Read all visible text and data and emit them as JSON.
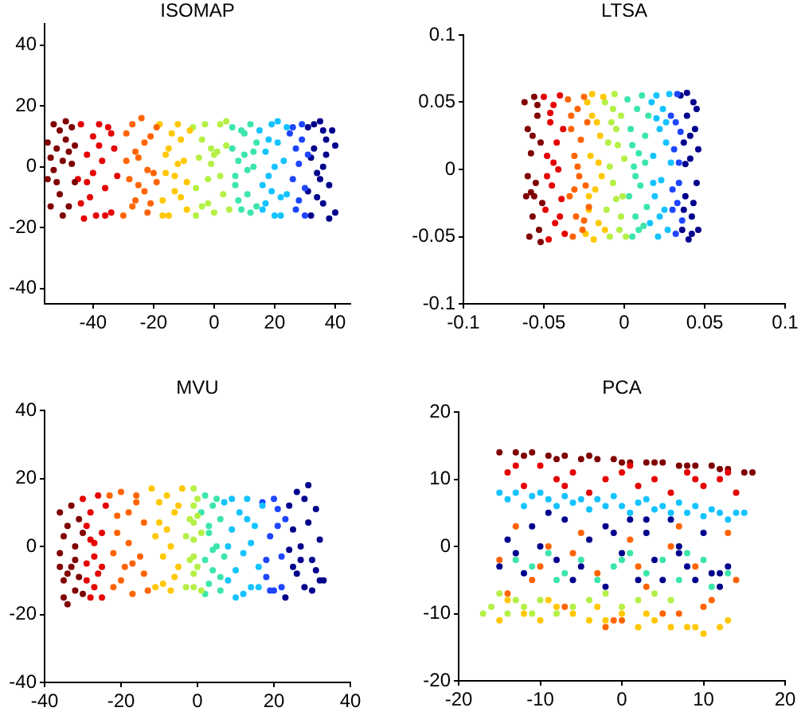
{
  "chart_data": [
    {
      "type": "scatter",
      "title": "ISOMAP",
      "marker": "circle",
      "xlim": [
        -56,
        45
      ],
      "ylim": [
        -45,
        47
      ],
      "xticks": [
        -40,
        -20,
        0,
        20,
        40
      ],
      "yticks": [
        -40,
        -20,
        0,
        20,
        40
      ],
      "series": [
        {
          "color": "#800000",
          "x": [
            -55,
            -54,
            -54,
            -53,
            -52,
            -52,
            -51,
            -50,
            -50,
            -49,
            -48,
            -48,
            -47,
            -46,
            -46,
            -53,
            -51,
            -49,
            -47,
            -55
          ],
          "values": [
            8,
            -13,
            3,
            14,
            -5,
            6,
            12,
            -16,
            2,
            9,
            -13,
            5,
            13,
            -5,
            7,
            -1,
            -9,
            15,
            1,
            -4
          ]
        },
        {
          "color": "#e60000",
          "x": [
            -45,
            -44,
            -43,
            -42,
            -41,
            -40,
            -39,
            -38,
            -37,
            -36,
            -35,
            -34,
            -33,
            -32,
            -44,
            -42,
            -40,
            -38,
            -36,
            -34
          ],
          "values": [
            -4,
            14,
            -17,
            4,
            -10,
            10,
            -16,
            14,
            2,
            -7,
            13,
            -15,
            6,
            -3,
            -12,
            -5,
            -2,
            7,
            -16,
            11
          ]
        },
        {
          "color": "#ff6400",
          "x": [
            -30,
            -29,
            -28,
            -27,
            -26,
            -25,
            -24,
            -23,
            -22,
            -21,
            -20,
            -19,
            -29,
            -27,
            -25,
            -23,
            -21,
            -19,
            -26,
            -22
          ],
          "values": [
            -16,
            11,
            -4,
            14,
            -11,
            3,
            16,
            -8,
            -15,
            10,
            -2,
            13,
            2,
            -13,
            -6,
            8,
            -12,
            -5,
            5,
            -1
          ]
        },
        {
          "color": "#ffc800",
          "x": [
            -18,
            -17,
            -16,
            -15,
            -14,
            -13,
            -12,
            -11,
            -10,
            -9,
            -8,
            -17,
            -15,
            -13,
            -11,
            -9,
            -16,
            -12
          ],
          "values": [
            14,
            -11,
            4,
            -16,
            11,
            -3,
            14,
            -10,
            2,
            -14,
            12,
            -16,
            6,
            -8,
            9,
            -5,
            -2,
            1
          ]
        },
        {
          "color": "#b4f046",
          "x": [
            -7,
            -6,
            -5,
            -4,
            -3,
            -2,
            -1,
            0,
            1,
            2,
            3,
            4,
            5,
            -6,
            -4,
            -2,
            0,
            2,
            4,
            -1
          ],
          "values": [
            13,
            -7,
            3,
            -13,
            14,
            -4,
            6,
            -15,
            5,
            14,
            -9,
            7,
            -14,
            -16,
            9,
            -12,
            4,
            -3,
            15,
            1
          ]
        },
        {
          "color": "#3ce6aa",
          "x": [
            6,
            7,
            8,
            9,
            10,
            11,
            12,
            13,
            14,
            6,
            8,
            10,
            12,
            14,
            7,
            9,
            11,
            13
          ],
          "values": [
            13,
            -3,
            2,
            -14,
            11,
            -9,
            14,
            0,
            -13,
            6,
            -11,
            4,
            -15,
            8,
            -6,
            12,
            -1,
            5
          ]
        },
        {
          "color": "#14c3ff",
          "x": [
            15,
            16,
            17,
            18,
            19,
            20,
            21,
            22,
            23,
            24,
            16,
            18,
            20,
            22,
            24,
            17,
            19,
            21
          ],
          "values": [
            12,
            -14,
            5,
            -3,
            14,
            -16,
            8,
            -10,
            2,
            13,
            -6,
            9,
            0,
            -16,
            -9,
            -12,
            -8,
            15
          ]
        },
        {
          "color": "#1e46ff",
          "x": [
            25,
            26,
            27,
            28,
            29,
            30,
            26,
            28,
            30,
            27,
            29,
            31
          ],
          "values": [
            11,
            -4,
            6,
            -11,
            14,
            -16,
            13,
            1,
            -7,
            -14,
            9,
            4
          ]
        },
        {
          "color": "#00008c",
          "x": [
            31,
            32,
            33,
            34,
            35,
            36,
            37,
            38,
            39,
            40,
            32,
            34,
            36,
            38,
            40,
            31,
            33,
            35,
            37,
            36
          ],
          "values": [
            13,
            -16,
            6,
            -2,
            15,
            -12,
            9,
            -6,
            12,
            -15,
            3,
            -10,
            0,
            -17,
            7,
            -8,
            14,
            -4,
            4,
            12
          ]
        }
      ]
    },
    {
      "type": "scatter",
      "title": "LTSA",
      "marker": "circle",
      "xlim": [
        -0.1,
        0.1
      ],
      "ylim": [
        -0.1,
        0.1
      ],
      "xticks": [
        -0.1,
        -0.05,
        0,
        0.05,
        0.1
      ],
      "yticks": [
        -0.1,
        -0.05,
        0,
        0.05,
        0.1
      ],
      "series": [
        {
          "color": "#800000",
          "x": [
            -0.062,
            -0.061,
            -0.06,
            -0.059,
            -0.058,
            -0.057,
            -0.056,
            -0.055,
            -0.054,
            -0.053,
            -0.052,
            -0.051,
            -0.06,
            -0.058,
            -0.056,
            -0.054,
            -0.052,
            -0.057
          ],
          "values": [
            0.05,
            -0.02,
            0.03,
            -0.05,
            0.012,
            -0.035,
            0.054,
            -0.01,
            0.04,
            -0.045,
            0.02,
            -0.025,
            -0.005,
            -0.017,
            -0.02,
            0.048,
            -0.054,
            0.025
          ]
        },
        {
          "color": "#e60000",
          "x": [
            -0.05,
            -0.049,
            -0.048,
            -0.047,
            -0.046,
            -0.045,
            -0.044,
            -0.043,
            -0.042,
            -0.041,
            -0.04,
            -0.039,
            -0.038,
            -0.037,
            -0.048,
            -0.044,
            -0.04,
            -0.046
          ],
          "values": [
            0.054,
            -0.03,
            0.01,
            -0.052,
            0.035,
            -0.012,
            0.048,
            -0.04,
            0.02,
            0,
            0.055,
            -0.022,
            0.03,
            -0.048,
            -0.005,
            0.005,
            -0.035,
            0.042
          ]
        },
        {
          "color": "#ff6400",
          "x": [
            -0.035,
            -0.034,
            -0.033,
            -0.032,
            -0.031,
            -0.03,
            -0.029,
            -0.028,
            -0.027,
            -0.026,
            -0.025,
            -0.024,
            -0.023,
            -0.022,
            -0.033,
            -0.029,
            -0.025,
            -0.031
          ],
          "values": [
            0.052,
            -0.02,
            0.03,
            -0.05,
            0.01,
            -0.035,
            0.045,
            -0.005,
            0.022,
            -0.045,
            0.054,
            -0.012,
            0.035,
            -0.028,
            0.04,
            0.002,
            -0.038,
            -0.015
          ]
        },
        {
          "color": "#ffc800",
          "x": [
            -0.024,
            -0.023,
            -0.022,
            -0.021,
            -0.02,
            -0.019,
            -0.018,
            -0.017,
            -0.016,
            -0.015,
            -0.014,
            -0.013,
            -0.012,
            -0.02,
            -0.016,
            -0.022
          ],
          "values": [
            -0.048,
            0.05,
            -0.03,
            0.01,
            0.056,
            -0.052,
            -0.015,
            0.035,
            -0.04,
            0.025,
            -0.005,
            0.054,
            -0.045,
            0.04,
            0.005,
            -0.02
          ]
        },
        {
          "color": "#b4f046",
          "x": [
            -0.012,
            -0.011,
            -0.01,
            -0.009,
            -0.008,
            -0.007,
            -0.006,
            -0.005,
            -0.004,
            -0.003,
            -0.002,
            -0.001,
            0,
            0.001,
            -0.009,
            -0.005,
            -0.002,
            -0.007
          ],
          "values": [
            0.05,
            -0.03,
            0.02,
            -0.05,
            0.035,
            -0.01,
            0.056,
            -0.022,
            0.018,
            -0.045,
            0.04,
            -0.02,
            0.008,
            -0.05,
            0.002,
            0.03,
            -0.035,
            0.045
          ]
        },
        {
          "color": "#3ce6aa",
          "x": [
            0.002,
            0.003,
            0.004,
            0.005,
            0.006,
            0.007,
            0.008,
            0.009,
            0.01,
            0.011,
            0.012,
            0.013,
            0.014,
            0.015,
            0.005,
            0.009,
            0.013,
            0.007
          ],
          "values": [
            0.052,
            -0.02,
            0.03,
            -0.05,
            0.002,
            -0.035,
            0.045,
            0.012,
            -0.012,
            0.055,
            -0.042,
            0.025,
            -0.028,
            0.04,
            0.018,
            -0.045,
            0.005,
            -0.005
          ]
        },
        {
          "color": "#14c3ff",
          "x": [
            0.016,
            0.017,
            0.018,
            0.019,
            0.02,
            0.021,
            0.022,
            0.023,
            0.024,
            0.025,
            0.026,
            0.027,
            0.028,
            0.029,
            0.018,
            0.022,
            0.026,
            0.02
          ],
          "values": [
            -0.04,
            0.05,
            0.01,
            -0.02,
            0.055,
            -0.05,
            0.03,
            -0.008,
            0.045,
            -0.03,
            0.02,
            -0.045,
            0.056,
            0.005,
            -0.01,
            -0.035,
            0.035,
            0.038
          ]
        },
        {
          "color": "#1e46ff",
          "x": [
            0.029,
            0.03,
            0.031,
            0.032,
            0.033,
            0.034,
            0.035,
            0.036,
            0.03,
            0.032,
            0.034,
            0.033
          ],
          "values": [
            0.04,
            -0.03,
            0.015,
            -0.048,
            0.056,
            -0.01,
            0.028,
            -0.038,
            -0.015,
            0.035,
            0.005,
            -0.025
          ]
        },
        {
          "color": "#00008c",
          "x": [
            0.035,
            0.036,
            0.037,
            0.038,
            0.039,
            0.04,
            0.041,
            0.042,
            0.043,
            0.044,
            0.045,
            0.046,
            0.037,
            0.039,
            0.041,
            0.043,
            0.045,
            0.038,
            0.042,
            0.046
          ],
          "values": [
            0.055,
            -0.045,
            0.02,
            -0.02,
            0.04,
            -0.052,
            0.008,
            -0.035,
            0.05,
            0.03,
            -0.01,
            -0.045,
            -0.03,
            0.057,
            0.025,
            -0.025,
            0.045,
            0.004,
            -0.048,
            0.015
          ]
        }
      ]
    },
    {
      "type": "scatter",
      "title": "MVU",
      "marker": "circle",
      "xlim": [
        -40,
        40
      ],
      "ylim": [
        -40,
        40
      ],
      "xticks": [
        -40,
        -20,
        0,
        20,
        40
      ],
      "yticks": [
        -40,
        -20,
        0,
        20,
        40
      ],
      "series": [
        {
          "color": "#800000",
          "x": [
            -36,
            -35,
            -35,
            -34,
            -34,
            -33,
            -33,
            -32,
            -32,
            -31,
            -31,
            -30,
            -36,
            -34,
            -36,
            -35,
            -32,
            -30
          ],
          "values": [
            10,
            -10,
            3,
            -17,
            6,
            -6,
            12,
            -13,
            0,
            8,
            -9,
            -14,
            -2,
            -8,
            -6,
            -15,
            -4,
            4
          ]
        },
        {
          "color": "#e60000",
          "x": [
            -30,
            -29,
            -29,
            -28,
            -28,
            -27,
            -27,
            -26,
            -26,
            -25,
            -25,
            -24,
            -29,
            -27,
            -25,
            -28
          ],
          "values": [
            14,
            -5,
            6,
            -15,
            10,
            1,
            -12,
            15,
            -8,
            4,
            -15,
            12,
            -10,
            -3,
            -6,
            2
          ]
        },
        {
          "color": "#ff6400",
          "x": [
            -23,
            -22,
            -21,
            -20,
            -19,
            -18,
            -17,
            -16,
            -15,
            -14,
            -13,
            -22,
            -20,
            -18,
            -16,
            -14,
            -21,
            -17
          ],
          "values": [
            15,
            -12,
            4,
            16,
            -6,
            10,
            -14,
            13,
            -3,
            7,
            -13,
            -2,
            -10,
            1,
            15,
            -8,
            9,
            -5
          ]
        },
        {
          "color": "#ffc800",
          "x": [
            -12,
            -11,
            -10,
            -9,
            -8,
            -7,
            -6,
            -5,
            -4,
            -11,
            -9,
            -7,
            -5,
            -10,
            -6,
            -8
          ],
          "values": [
            17,
            -12,
            7,
            -3,
            15,
            -13,
            10,
            -6,
            17,
            3,
            -11,
            0,
            12,
            13,
            -9,
            5
          ]
        },
        {
          "color": "#b4f046",
          "x": [
            -3,
            -2,
            -1,
            -1,
            -1,
            -1,
            -1,
            -1,
            -1,
            0,
            0,
            1,
            1,
            -2,
            0,
            -3
          ],
          "values": [
            -12,
            8,
            17,
            12,
            7,
            2,
            -3,
            -8,
            -12,
            14,
            -6,
            4,
            -13,
            -4,
            9,
            3
          ]
        },
        {
          "color": "#3ce6aa",
          "x": [
            1,
            2,
            2,
            3,
            3,
            4,
            4,
            5,
            5,
            6,
            6,
            7,
            2,
            4,
            6,
            3
          ],
          "values": [
            10,
            -4,
            15,
            -11,
            4,
            12,
            -7,
            0,
            14,
            -13,
            8,
            -3,
            -14,
            -1,
            -9,
            6
          ]
        },
        {
          "color": "#14c3ff",
          "x": [
            7,
            8,
            9,
            10,
            11,
            12,
            13,
            14,
            15,
            16,
            17,
            8,
            10,
            12,
            14,
            16,
            9,
            13
          ],
          "values": [
            13,
            -10,
            5,
            -15,
            10,
            -2,
            14,
            -12,
            6,
            -6,
            12,
            0,
            -7,
            -14,
            1,
            -12,
            14,
            8
          ]
        },
        {
          "color": "#1e46ff",
          "x": [
            17,
            18,
            19,
            20,
            21,
            22,
            23,
            18,
            20,
            22,
            19,
            21
          ],
          "values": [
            13,
            -9,
            3,
            -13,
            11,
            -3,
            8,
            -4,
            14,
            -12,
            -13,
            6
          ]
        },
        {
          "color": "#00008c",
          "x": [
            23,
            24,
            25,
            26,
            27,
            28,
            29,
            30,
            31,
            32,
            33,
            24,
            26,
            28,
            30,
            32,
            25,
            27,
            29,
            31
          ],
          "values": [
            -15,
            12,
            -6,
            16,
            0,
            -12,
            18,
            -4,
            11,
            -10,
            -10,
            -1,
            -8,
            14,
            -13,
            2,
            5,
            -4,
            7,
            -7
          ]
        }
      ]
    },
    {
      "type": "scatter",
      "title": "PCA",
      "marker": "circle",
      "xlim": [
        -20,
        20
      ],
      "ylim": [
        -20,
        20
      ],
      "xticks": [
        -20,
        -10,
        0,
        10,
        20
      ],
      "yticks": [
        -20,
        -10,
        0,
        10,
        20
      ],
      "series": [
        {
          "color": "#b4f046",
          "x": [
            -17,
            -16,
            -15,
            -14,
            -13,
            -12,
            -11,
            -10,
            -8,
            -6,
            -4,
            -2,
            0,
            2,
            4,
            6
          ],
          "values": [
            -10,
            -9,
            -7,
            -10,
            -8,
            -9,
            -10,
            -8,
            -10,
            -9,
            -8,
            -7,
            -9,
            -8,
            -7,
            -8
          ]
        },
        {
          "color": "#ffc800",
          "x": [
            -15,
            -14,
            -12,
            -10,
            -8,
            -6,
            -4,
            -2,
            0,
            2,
            4,
            6,
            8,
            10,
            12,
            13,
            -9,
            -3,
            3,
            9
          ],
          "values": [
            -11,
            -8,
            -10,
            -11,
            -9,
            -10,
            -11,
            -11,
            -10,
            -12,
            -11,
            -12,
            -12,
            -13,
            -12,
            -11,
            -8,
            -9,
            -10,
            -12
          ]
        },
        {
          "color": "#ff6400",
          "x": [
            -15,
            -13,
            -11,
            -9,
            -7,
            -5,
            -3,
            -1,
            1,
            3,
            5,
            7,
            9,
            11,
            13,
            -14,
            -10,
            -6,
            -2,
            2,
            6,
            10,
            14,
            0,
            7
          ],
          "values": [
            -2,
            3,
            -5,
            0,
            -9,
            2,
            -4,
            -11,
            1,
            -6,
            -10,
            3,
            -3,
            -8,
            2,
            -7,
            -3,
            -1,
            -12,
            -3,
            0,
            -9,
            -5,
            -11,
            -10
          ]
        },
        {
          "color": "#3ce6aa",
          "x": [
            -13,
            -11,
            -9,
            -7,
            -5,
            -3,
            -1,
            1,
            3,
            5,
            7,
            10,
            11,
            13,
            -8,
            0,
            8
          ],
          "values": [
            -2,
            -3,
            -1,
            -4,
            -2,
            -5,
            -3,
            -1,
            -4,
            -2,
            -5,
            -2,
            -6,
            -4,
            -5,
            -2,
            -1
          ]
        },
        {
          "color": "#00008c",
          "x": [
            -15,
            -14,
            -12,
            -11,
            -10,
            -8,
            -7,
            -6,
            -4,
            -2,
            -2,
            0,
            1,
            2,
            3,
            4,
            5,
            6,
            7,
            8,
            9,
            10,
            12,
            12,
            13,
            -13,
            -9,
            -5,
            -1,
            3,
            7,
            11
          ],
          "values": [
            -3,
            1,
            -4,
            3,
            0,
            -2,
            4,
            -5,
            1,
            -6,
            3,
            -1,
            4,
            -5,
            2,
            -2,
            -5,
            4,
            -1,
            -3,
            -5,
            2,
            -6,
            -4,
            -3,
            -1,
            5,
            -3,
            2,
            4,
            0,
            -4
          ]
        },
        {
          "color": "#14c3ff",
          "x": [
            -15,
            -14,
            -13,
            -12,
            -11,
            -10,
            -9,
            -8,
            -7,
            -6,
            -5,
            -4,
            -3,
            -2,
            -1,
            0,
            1,
            2,
            3,
            4,
            5,
            6,
            7,
            8,
            9,
            10,
            11,
            12,
            13,
            14,
            15
          ],
          "values": [
            8,
            7,
            8,
            6,
            7.5,
            8,
            7,
            6,
            7.5,
            6.5,
            7,
            5.5,
            7,
            6,
            7.5,
            6,
            5,
            6.5,
            7,
            5.5,
            6,
            5,
            6.5,
            5,
            6,
            4.5,
            5.5,
            5,
            4,
            5,
            5
          ]
        },
        {
          "color": "#e60000",
          "x": [
            -14,
            -12,
            -10,
            -8,
            -6,
            -4,
            -2,
            0,
            2,
            4,
            6,
            8,
            10,
            12,
            14,
            -13,
            -7,
            1,
            9,
            13
          ],
          "values": [
            11,
            9,
            12,
            10,
            11,
            8,
            10,
            11,
            9,
            10,
            8,
            11,
            9,
            10,
            8,
            12,
            9,
            12,
            10,
            11
          ]
        },
        {
          "color": "#800000",
          "x": [
            -15,
            -13,
            -11,
            -9,
            -7,
            -5,
            -3,
            -1,
            1,
            3,
            5,
            7,
            9,
            11,
            13,
            15,
            -12,
            -8,
            -4,
            0,
            4,
            8,
            12,
            16
          ],
          "values": [
            14,
            14,
            14,
            13.5,
            13.5,
            13,
            13,
            13,
            12.5,
            12.5,
            12.5,
            12,
            12,
            12,
            11.5,
            11,
            13.5,
            13,
            13.5,
            12.5,
            12.5,
            12,
            11.5,
            11
          ]
        }
      ]
    }
  ]
}
